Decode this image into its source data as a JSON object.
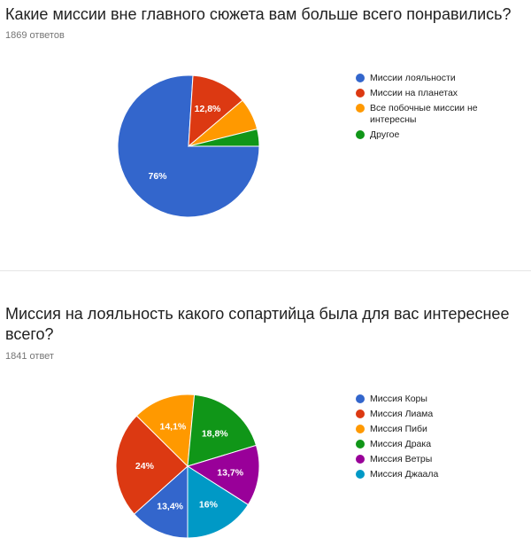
{
  "questions": [
    {
      "title": "Какие миссии вне главного сюжета вам больше всего понравились?",
      "count_label": "1869 ответов",
      "chart_data": {
        "type": "pie",
        "categories": [
          "Миссии лояльности",
          "Миссии на планетах",
          "Все побочные миссии не интересны",
          "Другое"
        ],
        "values": [
          76,
          12.8,
          7.3,
          3.9
        ],
        "labels": [
          "76%",
          "12,8%",
          "",
          ""
        ],
        "colors": [
          "#3366cc",
          "#dc3912",
          "#ff9900",
          "#109618"
        ],
        "start_angle": 0,
        "legend_position": "right"
      }
    },
    {
      "title": "Миссия на лояльность какого сопартийца была для вас интереснее всего?",
      "count_label": "1841 ответ",
      "chart_data": {
        "type": "pie",
        "categories": [
          "Миссия Коры",
          "Миссия Лиама",
          "Миссия Пиби",
          "Миссия Драка",
          "Миссия Ветры",
          "Миссия Джаала"
        ],
        "values": [
          13.4,
          24,
          14.1,
          18.8,
          13.7,
          16
        ],
        "labels": [
          "13,4%",
          "24%",
          "14,1%",
          "18,8%",
          "13,7%",
          "16%"
        ],
        "colors": [
          "#3366cc",
          "#dc3912",
          "#ff9900",
          "#109618",
          "#990099",
          "#0099c6"
        ],
        "start_angle": 90,
        "legend_position": "right"
      }
    }
  ]
}
